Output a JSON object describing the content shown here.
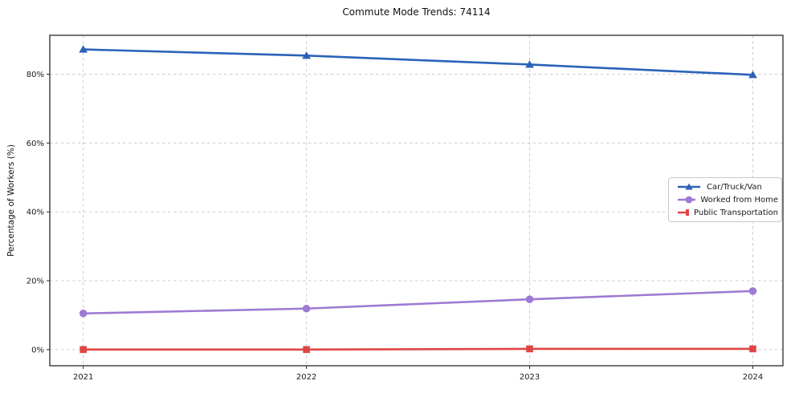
{
  "title": "Commute Mode Trends: 74114",
  "chart_data": {
    "type": "line",
    "x": [
      "2021",
      "2022",
      "2023",
      "2024"
    ],
    "series": [
      {
        "name": "Car/Truck/Van",
        "color": "#2b62b8",
        "marker": "triangle",
        "values": [
          87.2,
          85.4,
          82.8,
          79.8
        ]
      },
      {
        "name": "Worked from Home",
        "color": "#9d7ad3",
        "marker": "circle",
        "values": [
          10.5,
          11.9,
          14.6,
          17.0
        ]
      },
      {
        "name": "Public Transportation",
        "color": "#e04545",
        "marker": "square",
        "values": [
          0.0,
          0.0,
          0.2,
          0.2
        ]
      }
    ],
    "ylabel": "Percentage of Workers (%)",
    "ytick_labels": [
      "0%",
      "20%",
      "40%",
      "60%",
      "80%"
    ],
    "ytick_values": [
      0,
      20,
      40,
      60,
      80
    ],
    "ylim": [
      -4.7,
      91.3
    ],
    "grid": "dashed",
    "grid_color": "#cccccc",
    "spine_color": "#2a2a2a",
    "legend_position": "center right"
  }
}
